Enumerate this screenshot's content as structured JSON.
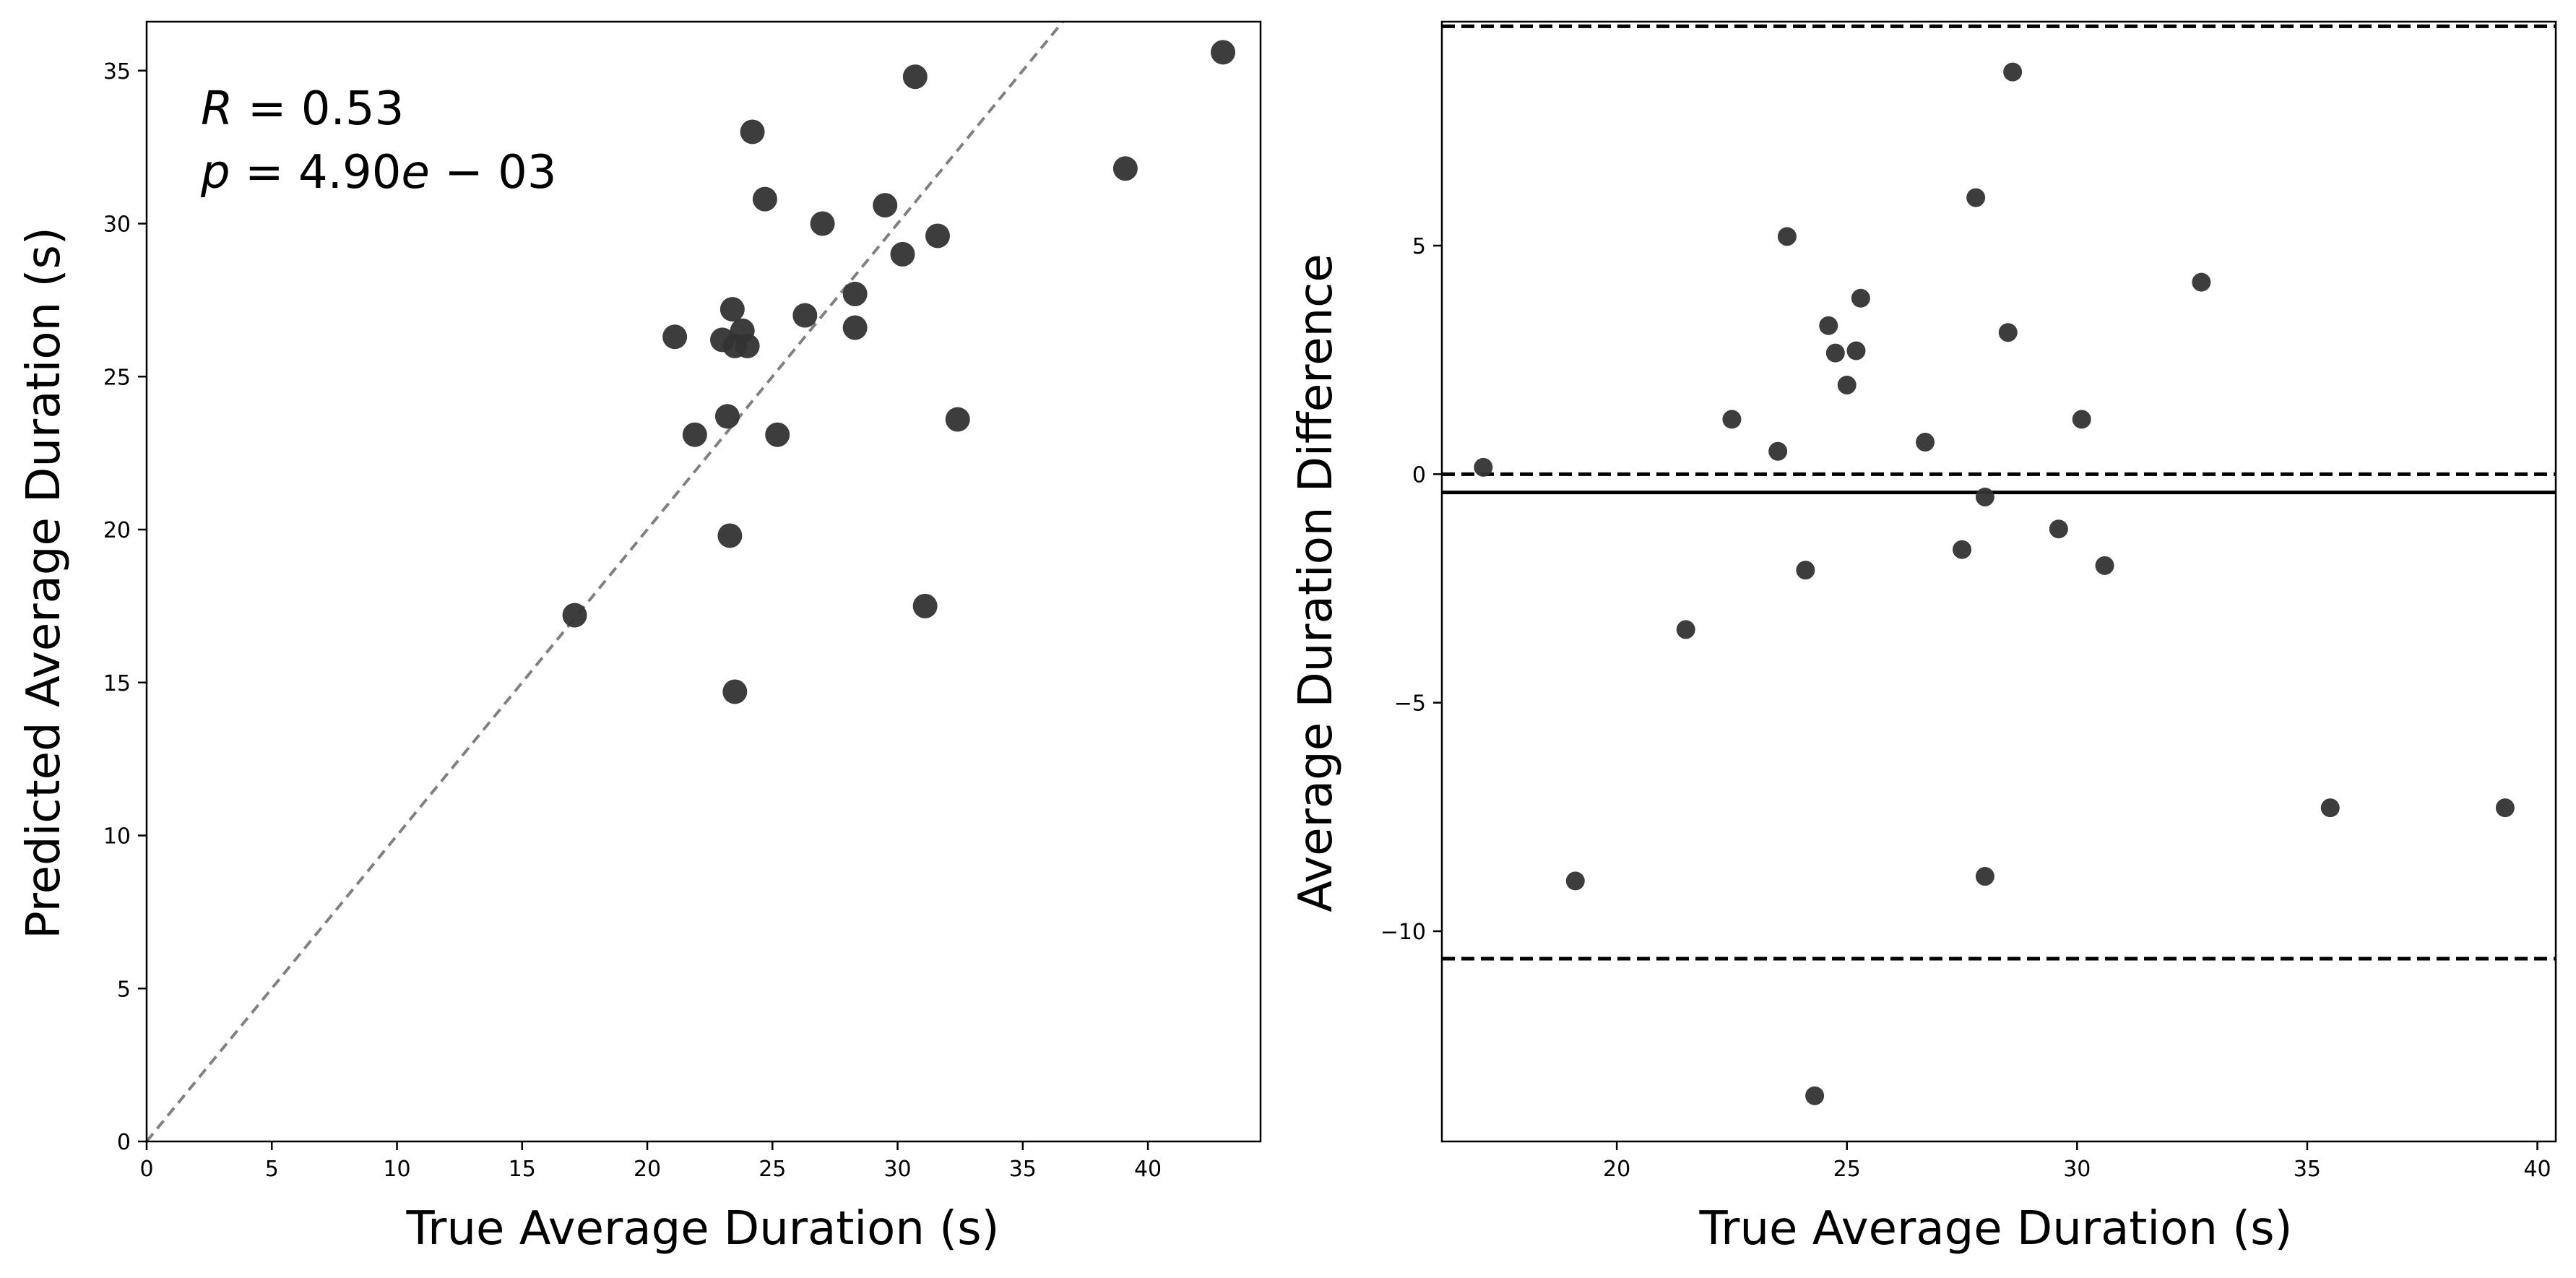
{
  "chart_data": [
    {
      "type": "scatter",
      "xlabel": "True Average Duration (s)",
      "ylabel": "Predicted Average Duration (s)",
      "xlim": [
        0,
        44.5
      ],
      "ylim": [
        0,
        36.6
      ],
      "xticks": [
        "0",
        "5",
        "10",
        "15",
        "20",
        "25",
        "30",
        "35",
        "40"
      ],
      "yticks": [
        "0",
        "5",
        "10",
        "15",
        "20",
        "25",
        "30",
        "35"
      ],
      "annotation": {
        "r_var": "R",
        "r_rest": " = 0.53",
        "p_var": "p",
        "p_rest1": " = 4.90",
        "p_var2": "e",
        "p_rest2": " − 03"
      },
      "identity_line": {
        "style": "dashed",
        "color": "#808080"
      },
      "marker_color": "#333333",
      "points": [
        {
          "x": 17.1,
          "y": 17.2
        },
        {
          "x": 21.1,
          "y": 26.3
        },
        {
          "x": 21.9,
          "y": 23.1
        },
        {
          "x": 23.0,
          "y": 26.2
        },
        {
          "x": 23.2,
          "y": 23.7
        },
        {
          "x": 23.3,
          "y": 19.8
        },
        {
          "x": 23.4,
          "y": 27.2
        },
        {
          "x": 23.5,
          "y": 26.0
        },
        {
          "x": 23.5,
          "y": 14.7
        },
        {
          "x": 23.8,
          "y": 26.5
        },
        {
          "x": 24.0,
          "y": 26.0
        },
        {
          "x": 24.2,
          "y": 33.0
        },
        {
          "x": 24.7,
          "y": 30.8
        },
        {
          "x": 25.2,
          "y": 23.1
        },
        {
          "x": 26.3,
          "y": 27.0
        },
        {
          "x": 27.0,
          "y": 30.0
        },
        {
          "x": 28.3,
          "y": 27.7
        },
        {
          "x": 28.3,
          "y": 26.6
        },
        {
          "x": 29.5,
          "y": 30.6
        },
        {
          "x": 30.2,
          "y": 29.0
        },
        {
          "x": 30.7,
          "y": 34.8
        },
        {
          "x": 31.1,
          "y": 17.5
        },
        {
          "x": 31.6,
          "y": 29.6
        },
        {
          "x": 32.4,
          "y": 23.6
        },
        {
          "x": 39.1,
          "y": 31.8
        },
        {
          "x": 43.0,
          "y": 35.6
        }
      ]
    },
    {
      "type": "scatter",
      "xlabel": "True Average Duration (s)",
      "ylabel": "Average Duration Difference",
      "xlim": [
        16.2,
        40.4
      ],
      "ylim": [
        -14.6,
        9.9
      ],
      "xticks": [
        "20",
        "25",
        "30",
        "35",
        "40"
      ],
      "yticks": [
        "−10",
        "−5",
        "0",
        "5"
      ],
      "reference_lines": [
        {
          "y": 0,
          "style": "dashed"
        },
        {
          "y": -0.4,
          "style": "solid"
        },
        {
          "y": 9.8,
          "style": "dashed"
        },
        {
          "y": -10.6,
          "style": "dashed"
        }
      ],
      "marker_color": "#333333",
      "points": [
        {
          "x": 17.1,
          "y": 0.15
        },
        {
          "x": 19.1,
          "y": -8.9
        },
        {
          "x": 21.5,
          "y": -3.4
        },
        {
          "x": 22.5,
          "y": 1.2
        },
        {
          "x": 23.5,
          "y": 0.5
        },
        {
          "x": 23.7,
          "y": 5.2
        },
        {
          "x": 24.1,
          "y": -2.1
        },
        {
          "x": 24.3,
          "y": -13.6
        },
        {
          "x": 24.6,
          "y": 3.25
        },
        {
          "x": 24.75,
          "y": 2.65
        },
        {
          "x": 25.0,
          "y": 1.95
        },
        {
          "x": 25.2,
          "y": 2.7
        },
        {
          "x": 25.3,
          "y": 3.85
        },
        {
          "x": 26.7,
          "y": 0.7
        },
        {
          "x": 27.5,
          "y": -1.65
        },
        {
          "x": 27.8,
          "y": 6.05
        },
        {
          "x": 28.0,
          "y": -0.5
        },
        {
          "x": 28.0,
          "y": -8.8
        },
        {
          "x": 28.5,
          "y": 3.1
        },
        {
          "x": 28.6,
          "y": 8.8
        },
        {
          "x": 29.6,
          "y": -1.2
        },
        {
          "x": 30.1,
          "y": 1.2
        },
        {
          "x": 30.6,
          "y": -2.0
        },
        {
          "x": 32.7,
          "y": 4.2
        },
        {
          "x": 35.5,
          "y": -7.3
        },
        {
          "x": 39.3,
          "y": -7.3
        }
      ]
    }
  ]
}
